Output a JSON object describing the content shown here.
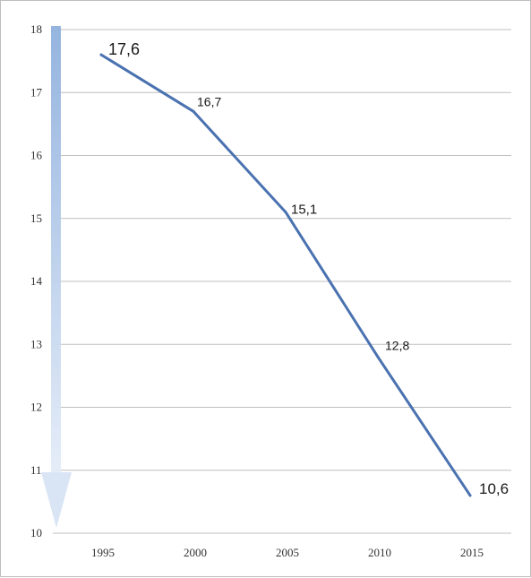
{
  "chart_data": {
    "type": "line",
    "title": "",
    "xlabel": "",
    "ylabel": "",
    "x": [
      1995,
      2000,
      2005,
      2010,
      2015
    ],
    "x_tick_labels": [
      "1995",
      "2000",
      "2005",
      "2010",
      "2015"
    ],
    "y_tick_labels": [
      "10",
      "11",
      "12",
      "13",
      "14",
      "15",
      "16",
      "17",
      "18"
    ],
    "ylim": [
      10,
      18
    ],
    "series": [
      {
        "values": [
          17.6,
          16.7,
          15.1,
          12.8,
          10.6
        ],
        "data_labels": [
          "17,6",
          "16,7",
          "15,1",
          "12,8",
          "10,6"
        ]
      }
    ],
    "grid": "horizontal",
    "legend": "none",
    "decoration": "downward arrow along y-axis",
    "colors": {
      "line": "#4a72b0",
      "gridline": "#bfbfbf",
      "arrow": "#b8cbe6"
    }
  }
}
